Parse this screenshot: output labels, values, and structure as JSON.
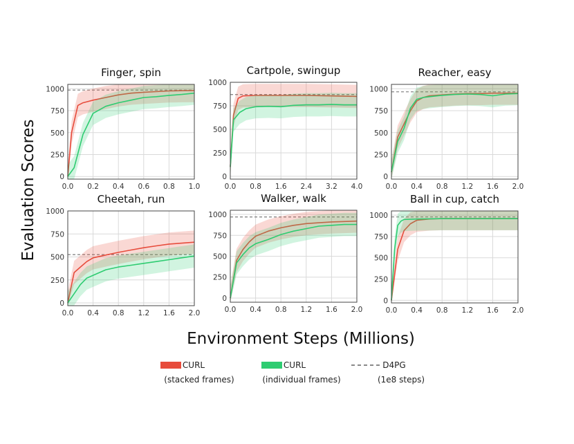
{
  "figure": {
    "ylabel": "Evaluation Scores",
    "xlabel": "Environment Steps (Millions)"
  },
  "colors": {
    "stacked": "#e74c3c",
    "individual": "#2ecc71",
    "d4pg": "#888888"
  },
  "legend": [
    {
      "key": "stacked",
      "label": "CURL",
      "sublabel": "(stacked frames)",
      "style": "solid"
    },
    {
      "key": "individual",
      "label": "CURL",
      "sublabel": "(individual frames)",
      "style": "solid"
    },
    {
      "key": "d4pg",
      "label": "D4PG",
      "sublabel": "(1e8 steps)",
      "style": "dashed"
    }
  ],
  "chart_data": [
    {
      "type": "line",
      "title": "Finger, spin",
      "xlim": [
        0,
        1.0
      ],
      "ylim": [
        -30,
        1050
      ],
      "xticks": [
        0.0,
        0.2,
        0.4,
        0.6,
        0.8,
        1.0
      ],
      "xtick_labels": [
        "0.0",
        "0.2",
        "0.4",
        "0.6",
        "0.8",
        "1.0"
      ],
      "yticks": [
        0,
        250,
        500,
        750,
        1000
      ],
      "yticks_labels": [
        "0",
        "250",
        "500",
        "750",
        "1000"
      ],
      "d4pg": 985,
      "series": [
        {
          "key": "stacked",
          "x": [
            0,
            0.03,
            0.08,
            0.12,
            0.2,
            0.3,
            0.4,
            0.5,
            0.6,
            0.7,
            0.8,
            0.9,
            1.0
          ],
          "y": [
            0,
            500,
            810,
            840,
            870,
            900,
            930,
            950,
            960,
            968,
            975,
            978,
            980
          ]
        },
        {
          "key": "individual",
          "x": [
            0,
            0.05,
            0.12,
            0.2,
            0.3,
            0.4,
            0.5,
            0.6,
            0.7,
            0.8,
            0.9,
            1.0
          ],
          "y": [
            0,
            100,
            480,
            720,
            800,
            840,
            870,
            900,
            910,
            925,
            935,
            950
          ]
        }
      ]
    },
    {
      "type": "line",
      "title": "Cartpole, swingup",
      "xlim": [
        0,
        4.0
      ],
      "ylim": [
        -30,
        1000
      ],
      "xticks": [
        0.0,
        0.8,
        1.6,
        2.4,
        3.2,
        4.0
      ],
      "xtick_labels": [
        "0.0",
        "0.8",
        "1.6",
        "2.4",
        "3.2",
        "4.0"
      ],
      "yticks": [
        0,
        250,
        500,
        750,
        1000
      ],
      "yticks_labels": [
        "0",
        "250",
        "500",
        "750",
        "1000"
      ],
      "d4pg": 870,
      "series": [
        {
          "key": "stacked",
          "x": [
            0,
            0.1,
            0.25,
            0.4,
            0.8,
            1.6,
            2.4,
            3.2,
            4.0
          ],
          "y": [
            100,
            650,
            830,
            855,
            860,
            860,
            860,
            855,
            850
          ]
        },
        {
          "key": "individual",
          "x": [
            0,
            0.1,
            0.3,
            0.5,
            0.8,
            1.2,
            1.6,
            2.0,
            2.4,
            2.8,
            3.2,
            3.6,
            4.0
          ],
          "y": [
            100,
            600,
            680,
            720,
            740,
            745,
            740,
            755,
            760,
            760,
            765,
            760,
            760
          ]
        }
      ]
    },
    {
      "type": "line",
      "title": "Reacher, easy",
      "xlim": [
        0,
        2.0
      ],
      "ylim": [
        -30,
        1050
      ],
      "xticks": [
        0.0,
        0.4,
        0.8,
        1.2,
        1.6,
        2.0
      ],
      "xtick_labels": [
        "0.0",
        "0.4",
        "0.8",
        "1.2",
        "1.6",
        "2.0"
      ],
      "yticks": [
        0,
        250,
        500,
        750,
        1000
      ],
      "yticks_labels": [
        "0",
        "250",
        "500",
        "750",
        "1000"
      ],
      "d4pg": 965,
      "series": [
        {
          "key": "stacked",
          "x": [
            0,
            0.1,
            0.2,
            0.3,
            0.4,
            0.5,
            0.6,
            0.8,
            1.0,
            1.2,
            1.4,
            1.6,
            1.8,
            2.0
          ],
          "y": [
            50,
            450,
            600,
            750,
            860,
            900,
            920,
            930,
            940,
            945,
            945,
            950,
            950,
            950
          ]
        },
        {
          "key": "individual",
          "x": [
            0,
            0.1,
            0.2,
            0.3,
            0.4,
            0.5,
            0.6,
            0.8,
            1.0,
            1.2,
            1.4,
            1.6,
            1.8,
            2.0
          ],
          "y": [
            50,
            400,
            550,
            780,
            880,
            900,
            910,
            925,
            935,
            940,
            935,
            920,
            940,
            945
          ]
        }
      ]
    },
    {
      "type": "line",
      "title": "Cheetah, run",
      "xlim": [
        0,
        2.0
      ],
      "ylim": [
        -30,
        1000
      ],
      "xticks": [
        0.0,
        0.4,
        0.8,
        1.2,
        1.6,
        2.0
      ],
      "xtick_labels": [
        "0.0",
        "0.4",
        "0.8",
        "1.2",
        "1.6",
        "2.0"
      ],
      "yticks": [
        0,
        250,
        500,
        750,
        1000
      ],
      "yticks_labels": [
        "0",
        "250",
        "500",
        "750",
        "1000"
      ],
      "d4pg": 525,
      "series": [
        {
          "key": "stacked",
          "x": [
            0,
            0.1,
            0.2,
            0.3,
            0.4,
            0.6,
            0.8,
            1.0,
            1.2,
            1.4,
            1.6,
            1.8,
            2.0
          ],
          "y": [
            0,
            330,
            390,
            450,
            490,
            520,
            550,
            575,
            600,
            620,
            640,
            650,
            660
          ]
        },
        {
          "key": "individual",
          "x": [
            0,
            0.1,
            0.2,
            0.3,
            0.4,
            0.6,
            0.8,
            1.0,
            1.2,
            1.4,
            1.6,
            1.8,
            2.0
          ],
          "y": [
            0,
            100,
            200,
            270,
            300,
            360,
            390,
            410,
            430,
            450,
            470,
            490,
            510
          ]
        }
      ]
    },
    {
      "type": "line",
      "title": "Walker, walk",
      "xlim": [
        0,
        2.0
      ],
      "ylim": [
        -50,
        1050
      ],
      "xticks": [
        0.0,
        0.4,
        0.8,
        1.2,
        1.6,
        2.0
      ],
      "xtick_labels": [
        "0.0",
        "0.4",
        "0.8",
        "1.2",
        "1.6",
        "2.0"
      ],
      "yticks": [
        0,
        250,
        500,
        750,
        1000
      ],
      "yticks_labels": [
        "0",
        "250",
        "500",
        "750",
        "1000"
      ],
      "d4pg": 970,
      "series": [
        {
          "key": "stacked",
          "x": [
            0,
            0.1,
            0.2,
            0.3,
            0.4,
            0.6,
            0.8,
            1.0,
            1.2,
            1.4,
            1.6,
            1.8,
            2.0
          ],
          "y": [
            0,
            450,
            580,
            670,
            740,
            800,
            840,
            870,
            890,
            900,
            910,
            915,
            920
          ]
        },
        {
          "key": "individual",
          "x": [
            0,
            0.1,
            0.2,
            0.3,
            0.4,
            0.6,
            0.8,
            1.0,
            1.2,
            1.4,
            1.6,
            1.8,
            2.0
          ],
          "y": [
            0,
            420,
            520,
            600,
            650,
            700,
            760,
            800,
            830,
            860,
            870,
            880,
            880
          ]
        }
      ]
    },
    {
      "type": "line",
      "title": "Ball in cup, catch",
      "xlim": [
        0,
        2.0
      ],
      "ylim": [
        -30,
        1050
      ],
      "xticks": [
        0.0,
        0.4,
        0.8,
        1.2,
        1.6,
        2.0
      ],
      "xtick_labels": [
        "0.0",
        "0.4",
        "0.8",
        "1.2",
        "1.6",
        "2.0"
      ],
      "yticks": [
        0,
        250,
        500,
        750,
        1000
      ],
      "yticks_labels": [
        "0",
        "250",
        "500",
        "750",
        "1000"
      ],
      "d4pg": 980,
      "series": [
        {
          "key": "stacked",
          "x": [
            0,
            0.1,
            0.2,
            0.3,
            0.4,
            0.6,
            0.8,
            1.2,
            1.6,
            2.0
          ],
          "y": [
            0,
            600,
            820,
            900,
            940,
            955,
            960,
            960,
            960,
            960
          ]
        },
        {
          "key": "individual",
          "x": [
            0,
            0.05,
            0.1,
            0.15,
            0.2,
            0.4,
            0.8,
            1.2,
            1.6,
            2.0
          ],
          "y": [
            0,
            600,
            880,
            930,
            950,
            955,
            960,
            960,
            960,
            960
          ]
        }
      ]
    }
  ]
}
